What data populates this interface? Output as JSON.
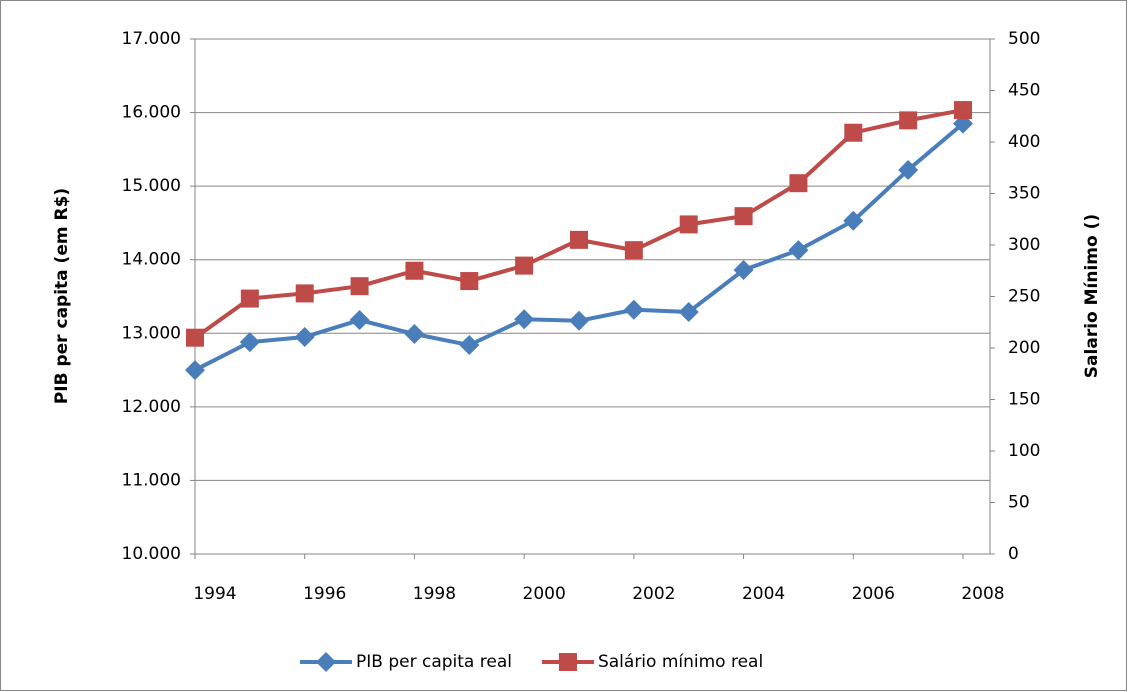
{
  "chart_data": {
    "type": "line",
    "ylabel": "PIB per capita (em R$)",
    "y2label": "Salario Mínimo  ()",
    "categories": [
      1994,
      null,
      1996,
      null,
      1998,
      null,
      2000,
      null,
      2002,
      null,
      2004,
      null,
      2006,
      null,
      2008
    ],
    "series": [
      {
        "name": "PIB per capita real",
        "color": "#4a7ebb",
        "marker": "diamond",
        "values": [
          12500,
          12880,
          12950,
          13180,
          12990,
          12840,
          13190,
          13170,
          13320,
          13290,
          13860,
          14130,
          14530,
          15220,
          15850
        ]
      },
      {
        "name": "Salário mínimo real",
        "color": "#be4b48",
        "marker": "square",
        "axis": "y2",
        "values": [
          210,
          248,
          253,
          260,
          275,
          265,
          280,
          305,
          295,
          320,
          328,
          360,
          409,
          421,
          431
        ]
      }
    ],
    "ylim": [
      10000,
      17000
    ],
    "yticks": [
      {
        "value": 10000,
        "label": "10.000"
      },
      {
        "value": 11000,
        "label": "11.000"
      },
      {
        "value": 12000,
        "label": "12.000"
      },
      {
        "value": 13000,
        "label": "13.000"
      },
      {
        "value": 14000,
        "label": "14.000"
      },
      {
        "value": 15000,
        "label": "15.000"
      },
      {
        "value": 16000,
        "label": "16.000"
      },
      {
        "value": 17000,
        "label": "17.000"
      }
    ],
    "y2lim": [
      0,
      500
    ],
    "y2ticks": [
      0,
      50,
      100,
      150,
      200,
      250,
      300,
      350,
      400,
      450,
      500
    ],
    "grid": true,
    "legend": "bottom"
  }
}
